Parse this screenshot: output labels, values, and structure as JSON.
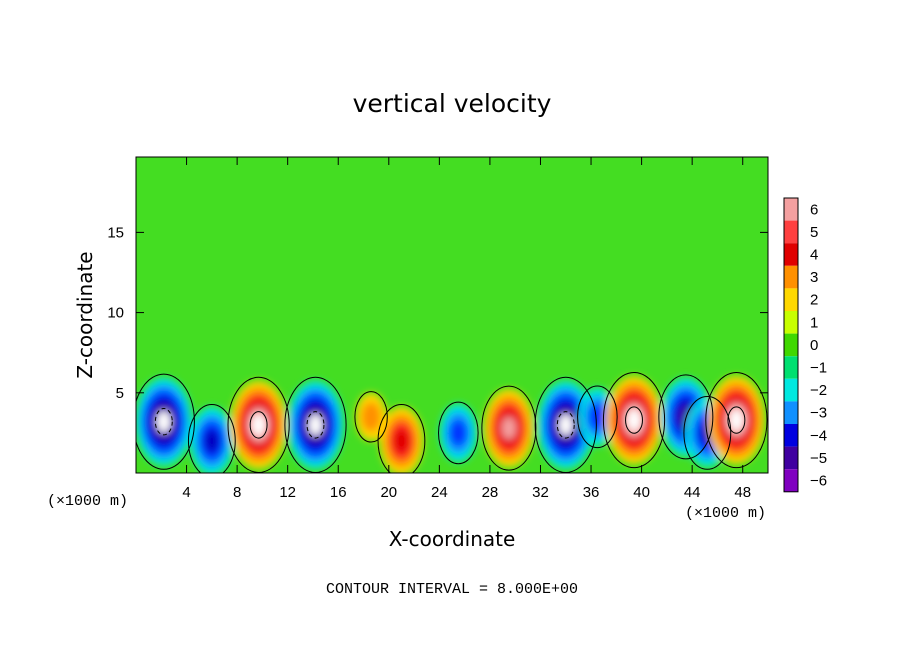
{
  "chart_data": {
    "type": "heatmap",
    "title": "vertical velocity",
    "xlabel": "X-coordinate",
    "ylabel": "Z-coordinate",
    "x_unit_note": "(×1000 m)",
    "x_unit_note_right": "(×1000 m)",
    "xlim": [
      0,
      50
    ],
    "ylim": [
      0,
      19.7
    ],
    "x_ticks": [
      "4",
      "8",
      "12",
      "16",
      "20",
      "24",
      "28",
      "32",
      "36",
      "40",
      "44",
      "48"
    ],
    "x_tick_values": [
      4,
      8,
      12,
      16,
      20,
      24,
      28,
      32,
      36,
      40,
      44,
      48
    ],
    "y_ticks": [
      "5",
      "10",
      "15"
    ],
    "y_tick_values": [
      5,
      10,
      15
    ],
    "footer": "CONTOUR INTERVAL = 8.000E+00",
    "colorbar": {
      "labels": [
        "6",
        "5",
        "4",
        "3",
        "2",
        "1",
        "0",
        "−1",
        "−2",
        "−3",
        "−4",
        "−5",
        "−6"
      ],
      "values": [
        6,
        5,
        4,
        3,
        2,
        1,
        0,
        -1,
        -2,
        -3,
        -4,
        -5,
        -6
      ],
      "colors": [
        "#f4a0a0",
        "#ff4040",
        "#e00000",
        "#ff9000",
        "#ffd800",
        "#c8ff00",
        "#40d800",
        "#00e070",
        "#00e8e0",
        "#1090ff",
        "#0000e0",
        "#4000a0",
        "#8000c0"
      ]
    },
    "background_color": "#44dd22",
    "cells_features": [
      {
        "x": 2.2,
        "z": 3.2,
        "value": -6,
        "kind": "downdraft"
      },
      {
        "x": 6.0,
        "z": 2.0,
        "value": -4,
        "kind": "downdraft"
      },
      {
        "x": 9.7,
        "z": 3.0,
        "value": 6,
        "kind": "updraft"
      },
      {
        "x": 14.2,
        "z": 3.0,
        "value": -6,
        "kind": "downdraft"
      },
      {
        "x": 18.6,
        "z": 3.5,
        "value": 2,
        "kind": "updraft"
      },
      {
        "x": 21.0,
        "z": 2.0,
        "value": 4,
        "kind": "updraft"
      },
      {
        "x": 25.5,
        "z": 2.5,
        "value": -3,
        "kind": "downdraft"
      },
      {
        "x": 29.5,
        "z": 2.8,
        "value": 5,
        "kind": "updraft"
      },
      {
        "x": 34.0,
        "z": 3.0,
        "value": -6,
        "kind": "downdraft"
      },
      {
        "x": 36.5,
        "z": 3.5,
        "value": -3,
        "kind": "downdraft"
      },
      {
        "x": 39.4,
        "z": 3.3,
        "value": 6,
        "kind": "updraft"
      },
      {
        "x": 43.5,
        "z": 3.5,
        "value": -5,
        "kind": "downdraft"
      },
      {
        "x": 45.2,
        "z": 2.5,
        "value": -4,
        "kind": "downdraft"
      },
      {
        "x": 47.5,
        "z": 3.3,
        "value": 6,
        "kind": "updraft"
      }
    ]
  }
}
